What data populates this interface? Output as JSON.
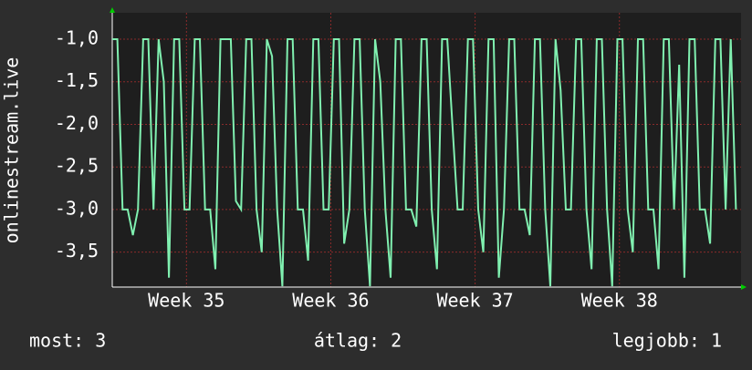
{
  "chart_data": {
    "type": "line",
    "ylabel": "onlinestream.live",
    "x": [
      0,
      0.25,
      0.5,
      0.75,
      1,
      1.25,
      1.5,
      1.75,
      2,
      2.25,
      2.5,
      2.75,
      3,
      3.25,
      3.5,
      3.75,
      4,
      4.25,
      4.5,
      4.75,
      5,
      5.25,
      5.5,
      5.75,
      6,
      6.25,
      6.5,
      6.75,
      7,
      7.25,
      7.5,
      7.75,
      8,
      8.25,
      8.5,
      8.75,
      9,
      9.25,
      9.5,
      9.75,
      10,
      10.25,
      10.5,
      10.75,
      11,
      11.25,
      11.5,
      11.75,
      12,
      12.25,
      12.5,
      12.75,
      13,
      13.25,
      13.5,
      13.75,
      14,
      14.25,
      14.5,
      14.75,
      15,
      15.25,
      15.5,
      15.75,
      16,
      16.25,
      16.5,
      16.75,
      17,
      17.25,
      17.5,
      17.75,
      18,
      18.25,
      18.5,
      18.75,
      19,
      19.25,
      19.5,
      19.75,
      20,
      20.25,
      20.5,
      20.75,
      21,
      21.25,
      21.5,
      21.75,
      22,
      22.25,
      22.5,
      22.75,
      23,
      23.25,
      23.5,
      23.75,
      24,
      24.25,
      24.5,
      24.75,
      25,
      25.25,
      25.5,
      25.75,
      26,
      26.25,
      26.5,
      26.75,
      27,
      27.25,
      27.5,
      27.75,
      28,
      28.25,
      28.5,
      28.75,
      29,
      29.25,
      29.5,
      29.75,
      30,
      30.25
    ],
    "series": [
      {
        "color": "#80f0b0",
        "values": [
          -1,
          -1,
          -3,
          -3,
          -3.3,
          -3,
          -1,
          -1,
          -3,
          -1,
          -1.5,
          -3.8,
          -1,
          -1,
          -3,
          -3,
          -1,
          -1,
          -3,
          -3,
          -3.7,
          -1,
          -1,
          -1,
          -2.9,
          -3,
          -1,
          -1,
          -3,
          -3.5,
          -1,
          -1.2,
          -3,
          -3.9,
          -1,
          -1,
          -3,
          -3,
          -3.6,
          -1,
          -1,
          -3,
          -3,
          -1,
          -1,
          -3.4,
          -3,
          -1,
          -1,
          -3,
          -3.9,
          -1,
          -1.5,
          -3,
          -3.8,
          -1,
          -1,
          -3,
          -3,
          -3.2,
          -1,
          -1,
          -3,
          -3.7,
          -1,
          -1,
          -2,
          -3,
          -3,
          -1,
          -1,
          -3,
          -3.5,
          -1,
          -1,
          -3.8,
          -3,
          -1,
          -1,
          -3,
          -3,
          -3.3,
          -1,
          -1,
          -3,
          -3.9,
          -1,
          -1.6,
          -3,
          -3,
          -1,
          -1,
          -3,
          -3.7,
          -1,
          -1,
          -3,
          -3.9,
          -1,
          -1,
          -3,
          -3.5,
          -1,
          -1,
          -3,
          -3,
          -3.7,
          -1,
          -1,
          -3,
          -1.3,
          -3.8,
          -1,
          -1,
          -3,
          -3,
          -3.4,
          -1,
          -1,
          -3,
          -1,
          -3
        ]
      }
    ],
    "xlim": [
      0,
      30.5
    ],
    "xticks": [
      {
        "value": 3.6,
        "label": "Week 35"
      },
      {
        "value": 10.6,
        "label": "Week 36"
      },
      {
        "value": 17.6,
        "label": "Week 37"
      },
      {
        "value": 24.6,
        "label": "Week 38"
      }
    ],
    "ylim": [
      -3.91,
      -0.69
    ],
    "yticks": [
      {
        "value": -1,
        "label": "-1,0"
      },
      {
        "value": -1.5,
        "label": "-1,5"
      },
      {
        "value": -2,
        "label": "-2,0"
      },
      {
        "value": -2.5,
        "label": "-2,5"
      },
      {
        "value": -3,
        "label": "-3,0"
      },
      {
        "value": -3.5,
        "label": "-3,5"
      }
    ],
    "grid": true,
    "footer": [
      "most: 3",
      "átlag: 2",
      "legjobb: 1"
    ]
  }
}
